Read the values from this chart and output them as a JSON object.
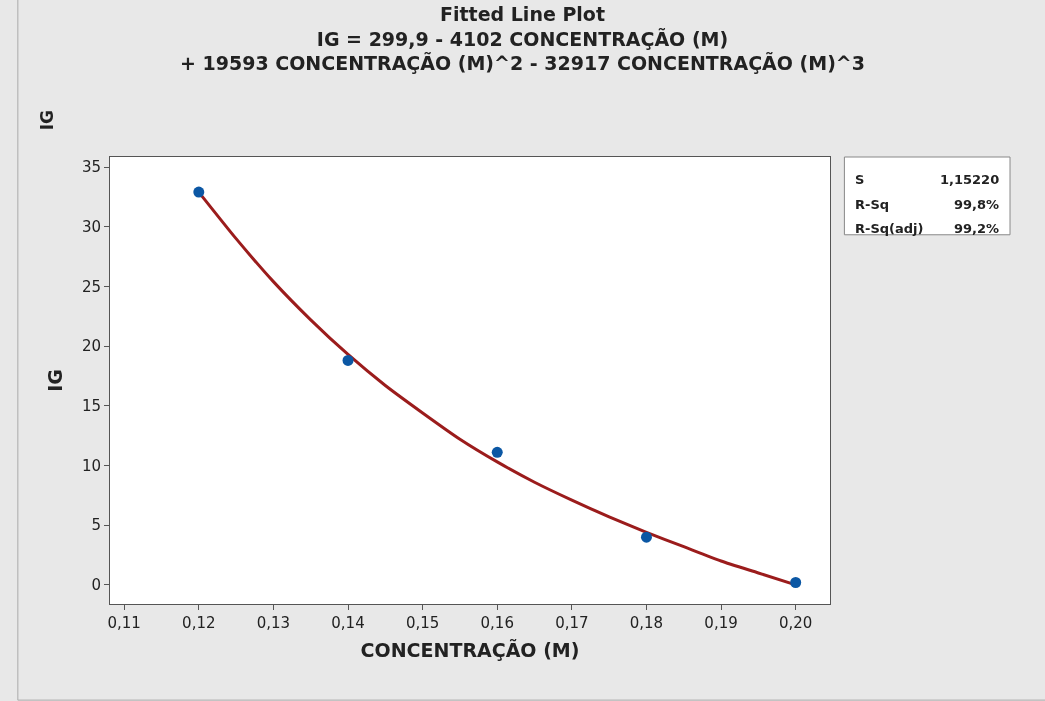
{
  "chart_data": {
    "type": "scatter",
    "title": "Fitted Line Plot",
    "subtitle": "IG = 299,9 - 4102 CONCENTRAÇÃO (M)\n+ 19593 CONCENTRAÇÃO (M)^2 - 32917 CONCENTRAÇÃO (M)^3",
    "xlabel": "CONCENTRAÇÃO (M)",
    "ylabel": "IG",
    "annotations": [
      "IG",
      "S",
      "1,15220",
      "R-Sq",
      "99,8%",
      "R-Sq(adj)",
      "99,2%"
    ],
    "x": [
      0.12,
      0.14,
      0.16,
      0.18,
      0.2
    ],
    "series": [
      {
        "type": "scatter",
        "color": "#0b57a4",
        "marker": "circle",
        "values": [
          32.9,
          18.8,
          11.1,
          4.0,
          0.2
        ]
      },
      {
        "type": "line",
        "color": "#9b1c1c",
        "marker": "none",
        "x": [
          0.12,
          0.125,
          0.13,
          0.135,
          0.14,
          0.145,
          0.15,
          0.155,
          0.16,
          0.165,
          0.17,
          0.175,
          0.18,
          0.185,
          0.19,
          0.195,
          0.2
        ],
        "values": [
          32.9,
          29.0,
          25.4,
          22.2,
          19.3,
          16.7,
          14.4,
          12.2,
          10.3,
          8.6,
          7.1,
          5.7,
          4.4,
          3.2,
          2.0,
          1.0,
          0.0
        ]
      }
    ],
    "xlim": [
      0.1081,
      0.2046
    ],
    "xticks": [
      {
        "value": 0.11,
        "label": "0,11"
      },
      {
        "value": 0.12,
        "label": "0,12"
      },
      {
        "value": 0.13,
        "label": "0,13"
      },
      {
        "value": 0.14,
        "label": "0,14"
      },
      {
        "value": 0.15,
        "label": "0,15"
      },
      {
        "value": 0.16,
        "label": "0,16"
      },
      {
        "value": 0.17,
        "label": "0,17"
      },
      {
        "value": 0.18,
        "label": "0,18"
      },
      {
        "value": 0.19,
        "label": "0,19"
      },
      {
        "value": 0.2,
        "label": "0,20"
      }
    ],
    "ylim": [
      -1.6,
      35.84
    ],
    "yticks": [
      0,
      5,
      10,
      15,
      20,
      25,
      30,
      35
    ],
    "grid": false
  }
}
